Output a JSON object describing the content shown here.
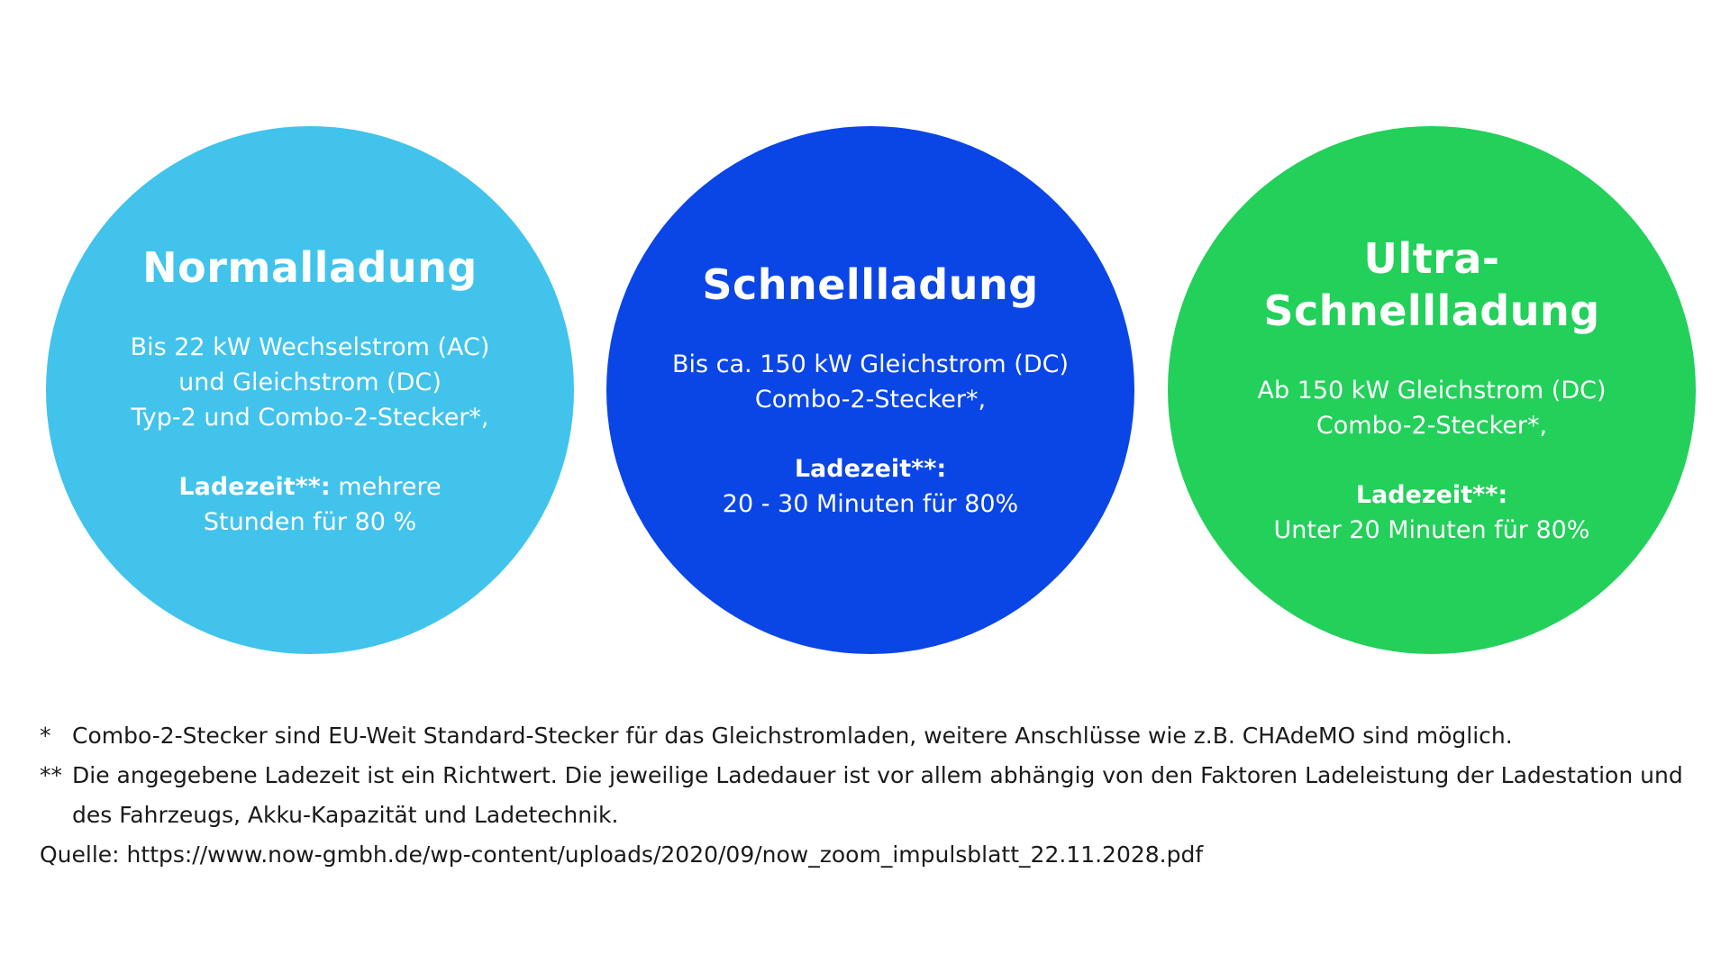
{
  "circles": [
    {
      "title_lines": [
        "Normalladung"
      ],
      "body_lines": [
        "Bis 22 kW Wechselstrom (AC)",
        "und Gleichstrom (DC)",
        "Typ-2 und Combo-2-Stecker*,"
      ],
      "time_label": "Ladezeit**:",
      "time_value_inline": " mehrere",
      "time_value_lines": [
        "Stunden für 80 %"
      ],
      "color": "#41C3EC"
    },
    {
      "title_lines": [
        "Schnellladung"
      ],
      "body_lines": [
        "Bis ca. 150 kW Gleichstrom (DC)",
        "Combo-2-Stecker*,"
      ],
      "time_label": "Ladezeit**:",
      "time_value_inline": "",
      "time_value_lines": [
        "20 - 30 Minuten für 80%"
      ],
      "color": "#0A45E6"
    },
    {
      "title_lines": [
        "Ultra-",
        "Schnellladung"
      ],
      "body_lines": [
        "Ab 150 kW Gleichstrom (DC)",
        "Combo-2-Stecker*,"
      ],
      "time_label": "Ladezeit**:",
      "time_value_inline": "",
      "time_value_lines": [
        "Unter 20 Minuten für 80%"
      ],
      "color": "#22D05A"
    }
  ],
  "notes": {
    "footnote_1_marker": "*",
    "footnote_1_text": "Combo-2-Stecker sind EU-Weit Standard-Stecker für das Gleichstromladen, weitere Anschlüsse wie z.B. CHAdeMO sind möglich.",
    "footnote_2_marker": "**",
    "footnote_2_text": "Die angegebene Ladezeit ist ein Richtwert. Die jeweilige Ladedauer ist vor allem abhängig von den Faktoren Ladeleistung der Ladestation und des Fahrzeugs, Akku-Kapazität und Ladetechnik.",
    "source": "Quelle: https://www.now-gmbh.de/wp-content/uploads/2020/09/now_zoom_impulsblatt_22.11.2028.pdf"
  }
}
